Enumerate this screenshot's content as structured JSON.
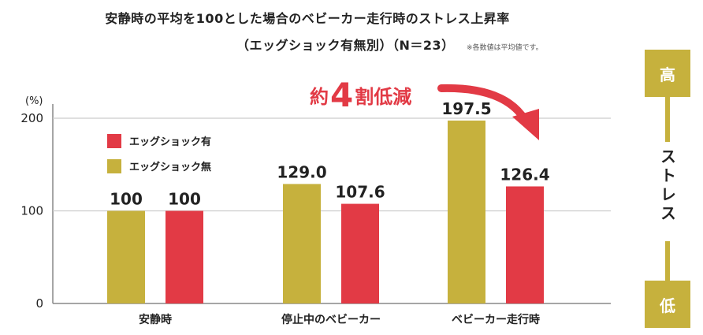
{
  "title_line1": "安静時の平均を100とした場合のベビーカー走行時のストレス上昇率",
  "title_line2": "（エッグショック有無別）（N＝23）",
  "note": "※各数値は平均値です。",
  "callout": {
    "prefix": "約",
    "number": "4",
    "suffix": "割低減"
  },
  "colors": {
    "with": "#e23a45",
    "without": "#c6b13d",
    "grid": "#cccccc",
    "axis": "#888888"
  },
  "scale": {
    "high": "高",
    "low": "低",
    "label": "ストレス"
  },
  "chart_data": {
    "type": "bar",
    "ylabel": "(%)",
    "ylim": [
      0,
      200
    ],
    "yticks": [
      0,
      100,
      200
    ],
    "categories": [
      "安静時",
      "停止中のベビーカー",
      "ベビーカー走行時"
    ],
    "series": [
      {
        "name": "エッグショック無",
        "values": [
          100,
          129.0,
          197.5
        ],
        "labels": [
          "100",
          "129.0",
          "197.5"
        ],
        "color": "#c6b13d"
      },
      {
        "name": "エッグショック有",
        "values": [
          100,
          107.6,
          126.4
        ],
        "labels": [
          "100",
          "107.6",
          "126.4"
        ],
        "color": "#e23a45"
      }
    ],
    "legend": [
      {
        "name": "エッグショック有",
        "color": "#e23a45"
      },
      {
        "name": "エッグショック無",
        "color": "#c6b13d"
      }
    ],
    "legend_position": "top-left",
    "grid": true
  }
}
